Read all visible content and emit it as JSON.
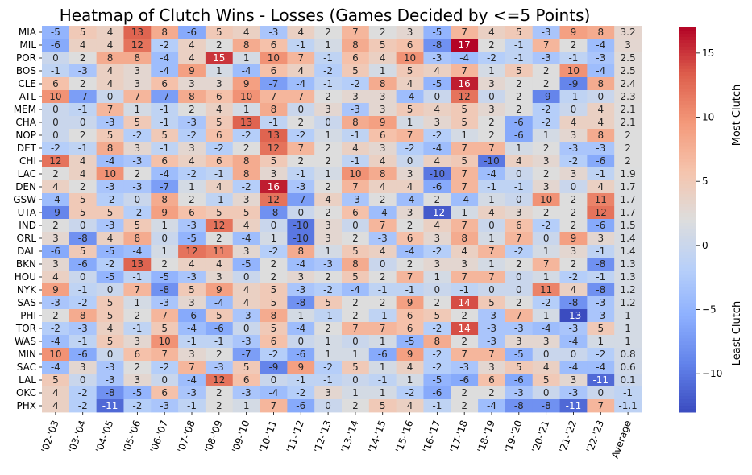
{
  "chart_data": {
    "type": "heatmap",
    "title": "Heatmap of Clutch Wins - Losses (Games Decided by <=5 Points)",
    "columns": [
      "'02-'03",
      "'03-'04",
      "'04-'05",
      "'05-'06",
      "'06-'07",
      "'07-'08",
      "'08-'09",
      "'09-'10",
      "'10-'11",
      "'11-'12",
      "'12-'13",
      "'13-'14",
      "'14-'15",
      "'15-'16",
      "'16-'17",
      "'17-'18",
      "'18-'19",
      "'19-'20",
      "'20-'21",
      "'21-'22",
      "'22-'23",
      "Average"
    ],
    "rows": [
      "MIA",
      "MIL",
      "POR",
      "BOS",
      "CLE",
      "ATL",
      "MEM",
      "CHA",
      "NOP",
      "DET",
      "CHI",
      "LAC",
      "DEN",
      "GSW",
      "UTA",
      "IND",
      "ORL",
      "DAL",
      "BKN",
      "HOU",
      "NYK",
      "SAS",
      "PHI",
      "TOR",
      "WAS",
      "MIN",
      "SAC",
      "LAL",
      "OKC",
      "PHX"
    ],
    "values": [
      [
        -5,
        5,
        4,
        13,
        8,
        -6,
        5,
        4,
        -3,
        4,
        2,
        7,
        2,
        3,
        -5,
        7,
        4,
        5,
        -3,
        9,
        8,
        3.2
      ],
      [
        -6,
        4,
        4,
        12,
        -2,
        4,
        2,
        8,
        6,
        -1,
        1,
        8,
        5,
        6,
        -8,
        17,
        2,
        -1,
        7,
        2,
        -4,
        3
      ],
      [
        0,
        2,
        8,
        8,
        -4,
        4,
        15,
        1,
        10,
        7,
        -1,
        6,
        4,
        10,
        -3,
        -4,
        -2,
        -1,
        -3,
        -1,
        -3,
        2.5
      ],
      [
        -1,
        -3,
        4,
        3,
        -4,
        9,
        1,
        -4,
        6,
        4,
        -2,
        5,
        1,
        5,
        4,
        7,
        1,
        5,
        2,
        10,
        -4,
        2.5
      ],
      [
        6,
        2,
        4,
        3,
        6,
        3,
        3,
        9,
        -7,
        -4,
        -1,
        -2,
        8,
        4,
        -5,
        16,
        3,
        2,
        2,
        -9,
        8,
        2.4
      ],
      [
        10,
        -7,
        0,
        7,
        -7,
        8,
        6,
        10,
        7,
        7,
        2,
        3,
        3,
        -4,
        0,
        12,
        0,
        2,
        -9,
        -1,
        0,
        2.3
      ],
      [
        0,
        -1,
        7,
        1,
        -1,
        2,
        4,
        1,
        8,
        0,
        3,
        -3,
        3,
        5,
        4,
        5,
        3,
        2,
        -2,
        0,
        4,
        2.1
      ],
      [
        0,
        0,
        -3,
        5,
        -1,
        -3,
        5,
        13,
        -1,
        2,
        0,
        8,
        9,
        1,
        3,
        5,
        2,
        -6,
        -2,
        4,
        4,
        2.1
      ],
      [
        0,
        2,
        5,
        -2,
        5,
        -2,
        6,
        -2,
        13,
        -2,
        1,
        -1,
        6,
        7,
        -2,
        1,
        2,
        -6,
        1,
        3,
        8,
        2
      ],
      [
        -2,
        -1,
        8,
        3,
        -1,
        3,
        -2,
        2,
        12,
        7,
        2,
        4,
        3,
        -2,
        -4,
        7,
        7,
        1,
        2,
        -3,
        -3,
        2
      ],
      [
        12,
        4,
        -4,
        -3,
        6,
        4,
        6,
        8,
        5,
        2,
        2,
        -1,
        4,
        0,
        4,
        5,
        -10,
        4,
        3,
        -2,
        -6,
        2
      ],
      [
        2,
        4,
        10,
        2,
        -4,
        -2,
        -1,
        8,
        3,
        -1,
        1,
        10,
        8,
        3,
        -10,
        7,
        -4,
        0,
        2,
        3,
        -1,
        1.9
      ],
      [
        4,
        2,
        -3,
        -3,
        -7,
        1,
        4,
        -2,
        16,
        -3,
        2,
        7,
        4,
        4,
        -6,
        7,
        -1,
        -1,
        3,
        0,
        4,
        1.7
      ],
      [
        -4,
        5,
        -2,
        0,
        8,
        2,
        -1,
        3,
        12,
        -7,
        4,
        -3,
        2,
        -4,
        2,
        -4,
        1,
        0,
        10,
        2,
        11,
        1.7
      ],
      [
        -9,
        5,
        5,
        -2,
        9,
        6,
        5,
        5,
        -8,
        0,
        2,
        6,
        -4,
        3,
        -12,
        1,
        4,
        3,
        2,
        2,
        12,
        1.7
      ],
      [
        2,
        0,
        -3,
        5,
        1,
        -3,
        12,
        4,
        0,
        -10,
        3,
        0,
        7,
        2,
        4,
        7,
        0,
        6,
        -2,
        2,
        -6,
        1.5
      ],
      [
        3,
        -8,
        4,
        8,
        0,
        -5,
        2,
        -4,
        1,
        -10,
        3,
        2,
        -3,
        6,
        3,
        8,
        1,
        7,
        0,
        9,
        3,
        1.4
      ],
      [
        -6,
        5,
        -5,
        -4,
        1,
        12,
        11,
        3,
        -2,
        8,
        1,
        5,
        4,
        -4,
        -2,
        4,
        7,
        -2,
        1,
        3,
        -1,
        1.4
      ],
      [
        3,
        -6,
        -2,
        13,
        2,
        4,
        4,
        -5,
        2,
        -4,
        -3,
        8,
        0,
        2,
        3,
        3,
        1,
        2,
        7,
        2,
        -8,
        1.3
      ],
      [
        4,
        0,
        -5,
        -1,
        -5,
        -3,
        3,
        0,
        2,
        3,
        2,
        5,
        2,
        7,
        1,
        7,
        7,
        0,
        1,
        -2,
        -1,
        1.3
      ],
      [
        9,
        -1,
        0,
        7,
        -8,
        5,
        9,
        4,
        5,
        -3,
        -2,
        -4,
        -1,
        -1,
        0,
        -1,
        0,
        0,
        11,
        4,
        -8,
        1.2
      ],
      [
        -3,
        -2,
        5,
        1,
        -3,
        3,
        -4,
        4,
        5,
        -8,
        5,
        2,
        2,
        9,
        2,
        14,
        5,
        2,
        -2,
        -8,
        -3,
        1.2
      ],
      [
        2,
        8,
        5,
        2,
        7,
        -6,
        5,
        -3,
        8,
        1,
        -1,
        2,
        -1,
        6,
        5,
        2,
        -3,
        7,
        1,
        -13,
        -3,
        1
      ],
      [
        -2,
        -3,
        4,
        -1,
        5,
        -4,
        -6,
        0,
        5,
        -4,
        2,
        7,
        7,
        6,
        -2,
        14,
        -3,
        -3,
        -4,
        -3,
        5,
        1
      ],
      [
        -4,
        -1,
        5,
        3,
        10,
        -1,
        -1,
        -3,
        6,
        0,
        1,
        0,
        1,
        -5,
        8,
        2,
        -3,
        3,
        3,
        -4,
        1,
        1
      ],
      [
        10,
        -6,
        0,
        6,
        7,
        3,
        2,
        -7,
        -2,
        -6,
        1,
        1,
        -6,
        9,
        -2,
        7,
        7,
        -5,
        0,
        0,
        -2,
        0.8
      ],
      [
        -4,
        3,
        -3,
        2,
        -2,
        7,
        -3,
        5,
        -9,
        9,
        -2,
        5,
        1,
        4,
        -2,
        -3,
        3,
        5,
        4,
        -4,
        -4,
        0.6
      ],
      [
        5,
        0,
        -3,
        3,
        0,
        -4,
        12,
        6,
        0,
        -1,
        -1,
        0,
        -1,
        1,
        -5,
        -6,
        6,
        -6,
        5,
        3,
        -11,
        0.1
      ],
      [
        4,
        -2,
        -8,
        -5,
        6,
        -3,
        2,
        -3,
        -4,
        -2,
        3,
        1,
        1,
        -2,
        -6,
        2,
        2,
        -3,
        0,
        -3,
        0,
        -1
      ],
      [
        4,
        -2,
        -11,
        -2,
        -3,
        -1,
        2,
        1,
        7,
        -6,
        0,
        2,
        5,
        4,
        -1,
        2,
        -4,
        -8,
        -8,
        -11,
        7,
        -1.1
      ]
    ],
    "colormap": "coolwarm",
    "vmin": -13,
    "vmax": 17,
    "colorbar_ticks": [
      -10,
      -5,
      0,
      5,
      10,
      15
    ],
    "colorbar_labels": {
      "top": "Most Clutch",
      "bottom": "Least Clutch"
    }
  }
}
